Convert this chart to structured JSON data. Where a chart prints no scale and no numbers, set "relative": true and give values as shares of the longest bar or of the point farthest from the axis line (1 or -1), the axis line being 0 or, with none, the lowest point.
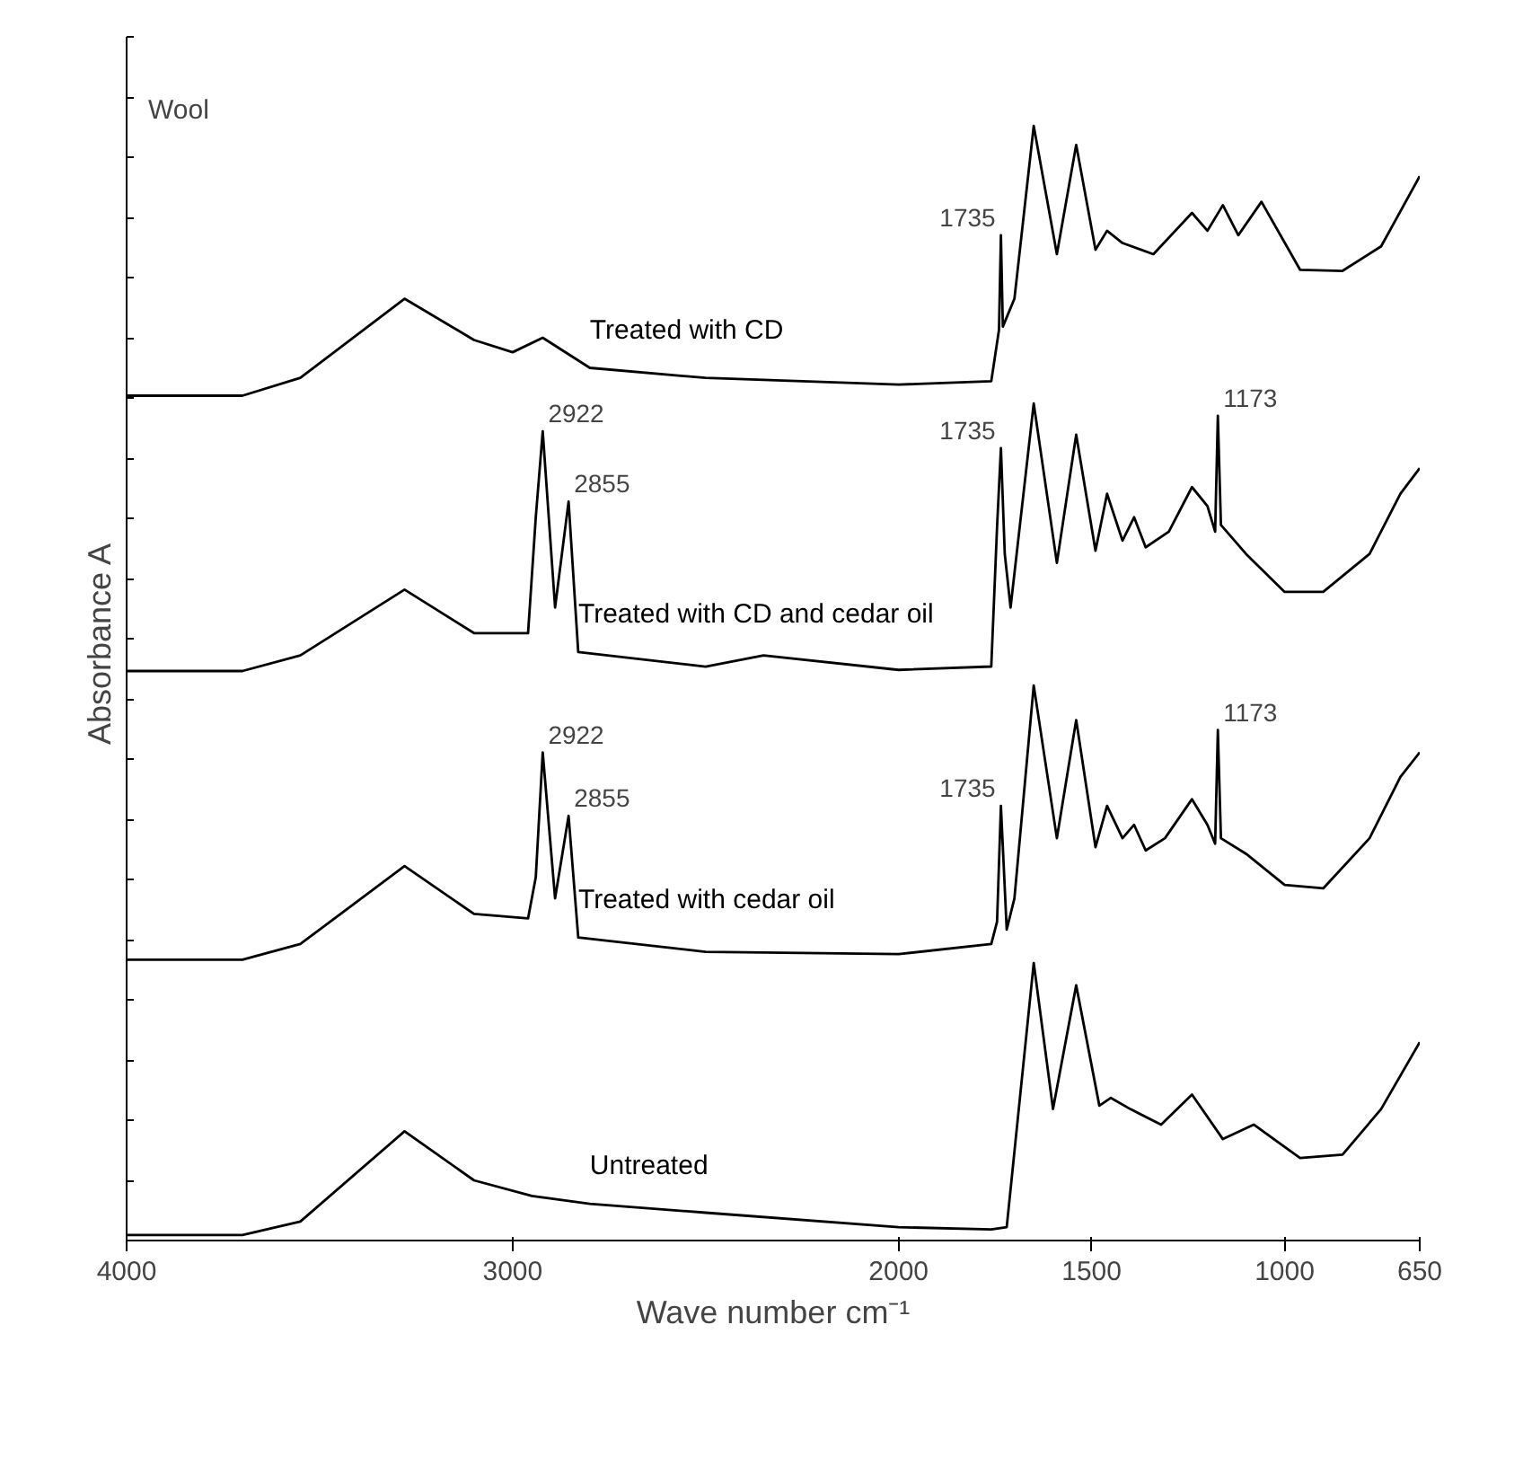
{
  "chart_data": {
    "type": "line",
    "title": "Wool",
    "xlabel": "Wave number cm⁻¹",
    "ylabel": "Absorbance  A",
    "relative": true,
    "xlim": [
      4000,
      650
    ],
    "xticks": [
      4000,
      3000,
      2000,
      1500,
      1000,
      650
    ],
    "tick_labels": "x",
    "grid": false,
    "marker": "none",
    "line_style": "solid",
    "series": [
      {
        "name": "Treated with CD",
        "color": "#000000",
        "x": [
          4000,
          3700,
          3550,
          3280,
          3100,
          3000,
          2922,
          2800,
          2500,
          2000,
          1760,
          1740,
          1735,
          1730,
          1700,
          1650,
          1590,
          1540,
          1490,
          1460,
          1420,
          1340,
          1240,
          1200,
          1160,
          1120,
          1060,
          960,
          850,
          750,
          650
        ],
        "values": [
          0.758,
          0.758,
          0.774,
          0.845,
          0.808,
          0.797,
          0.81,
          0.783,
          0.774,
          0.768,
          0.771,
          0.817,
          0.902,
          0.82,
          0.845,
          1.0,
          0.885,
          0.983,
          0.889,
          0.906,
          0.895,
          0.885,
          0.922,
          0.906,
          0.929,
          0.902,
          0.932,
          0.871,
          0.87,
          0.892,
          0.955
        ]
      },
      {
        "name": "Treated with CD and cedar oil",
        "color": "#000000",
        "x": [
          4000,
          3700,
          3550,
          3280,
          3100,
          2960,
          2940,
          2922,
          2890,
          2855,
          2830,
          2500,
          2350,
          2000,
          1760,
          1745,
          1735,
          1725,
          1710,
          1650,
          1590,
          1540,
          1490,
          1460,
          1420,
          1390,
          1360,
          1300,
          1240,
          1200,
          1180,
          1173,
          1165,
          1100,
          1000,
          900,
          780,
          700,
          650
        ],
        "values": [
          0.511,
          0.511,
          0.525,
          0.584,
          0.545,
          0.545,
          0.649,
          0.726,
          0.568,
          0.663,
          0.528,
          0.515,
          0.525,
          0.512,
          0.515,
          0.64,
          0.711,
          0.616,
          0.568,
          0.751,
          0.608,
          0.723,
          0.619,
          0.67,
          0.628,
          0.649,
          0.622,
          0.636,
          0.676,
          0.659,
          0.636,
          0.74,
          0.642,
          0.616,
          0.582,
          0.582,
          0.616,
          0.67,
          0.693
        ]
      },
      {
        "name": "Treated with cedar oil",
        "color": "#000000",
        "x": [
          4000,
          3700,
          3550,
          3280,
          3100,
          2960,
          2940,
          2922,
          2890,
          2855,
          2830,
          2500,
          2000,
          1760,
          1745,
          1735,
          1720,
          1700,
          1650,
          1590,
          1540,
          1490,
          1460,
          1420,
          1390,
          1360,
          1310,
          1240,
          1200,
          1180,
          1173,
          1165,
          1100,
          1000,
          900,
          780,
          700,
          650
        ],
        "values": [
          0.252,
          0.252,
          0.266,
          0.336,
          0.293,
          0.289,
          0.326,
          0.438,
          0.307,
          0.381,
          0.272,
          0.259,
          0.257,
          0.266,
          0.286,
          0.39,
          0.279,
          0.307,
          0.498,
          0.361,
          0.467,
          0.353,
          0.39,
          0.361,
          0.373,
          0.35,
          0.361,
          0.396,
          0.373,
          0.356,
          0.458,
          0.361,
          0.347,
          0.319,
          0.316,
          0.361,
          0.416,
          0.438
        ]
      },
      {
        "name": "Untreated",
        "color": "#000000",
        "x": [
          4000,
          3700,
          3550,
          3280,
          3100,
          2950,
          2800,
          2500,
          2000,
          1760,
          1720,
          1650,
          1600,
          1540,
          1480,
          1450,
          1400,
          1320,
          1240,
          1160,
          1080,
          960,
          850,
          750,
          650
        ],
        "values": [
          0.005,
          0.005,
          0.017,
          0.098,
          0.054,
          0.04,
          0.033,
          0.025,
          0.012,
          0.01,
          0.012,
          0.249,
          0.118,
          0.229,
          0.121,
          0.128,
          0.118,
          0.104,
          0.131,
          0.091,
          0.104,
          0.074,
          0.077,
          0.118,
          0.178
        ]
      }
    ],
    "annotations": [
      {
        "text": "1735",
        "x": 1735,
        "y": 0.902
      },
      {
        "text": "2922",
        "x": 2922,
        "y": 0.726
      },
      {
        "text": "2855",
        "x": 2855,
        "y": 0.663
      },
      {
        "text": "1735",
        "x": 1735,
        "y": 0.711
      },
      {
        "text": "1173",
        "x": 1173,
        "y": 0.74
      },
      {
        "text": "2922",
        "x": 2922,
        "y": 0.438
      },
      {
        "text": "2855",
        "x": 2855,
        "y": 0.381
      },
      {
        "text": "1735",
        "x": 1735,
        "y": 0.39
      },
      {
        "text": "1173",
        "x": 1173,
        "y": 0.458
      }
    ]
  }
}
